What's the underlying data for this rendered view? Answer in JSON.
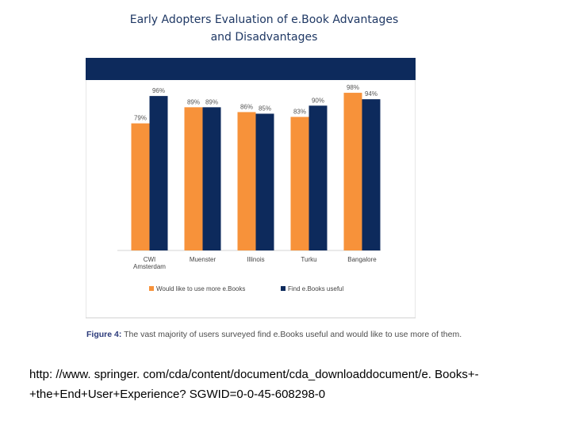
{
  "slide": {
    "title_line1": "Early Adopters Evaluation of e.Book Advantages",
    "title_line2": "and Disadvantages",
    "caption_label": "Figure 4:",
    "caption_text": " The vast majority of users surveyed find e.Books useful and would like to use more of them.",
    "url_line1": "http: //www. springer. com/cda/content/document/cda_downloaddocument/e. Books+-",
    "url_line2": "+the+End+User+Experience? SGWID=0-0-45-608298-0"
  },
  "colors": {
    "title": "#1f3864",
    "navy": "#0d2a5c",
    "orange": "#f7923a"
  },
  "chart_data": {
    "type": "bar",
    "categories": [
      "CWI Amsterdam",
      "Muenster",
      "Illinois",
      "Turku",
      "Bangalore"
    ],
    "category_lines": [
      [
        "CWI",
        "Amsterdam"
      ],
      [
        "Muenster"
      ],
      [
        "Illinois"
      ],
      [
        "Turku"
      ],
      [
        "Bangalore"
      ]
    ],
    "series": [
      {
        "name": "Would like to use more e.Books",
        "color": "#f7923a",
        "values": [
          79,
          89,
          86,
          83,
          98
        ]
      },
      {
        "name": "Find e.Books useful",
        "color": "#0d2a5c",
        "values": [
          96,
          89,
          85,
          90,
          94
        ]
      }
    ],
    "value_labels": [
      [
        "79%",
        "89%",
        "86%",
        "83%",
        "98%"
      ],
      [
        "96%",
        "89%",
        "85%",
        "90%",
        "94%"
      ]
    ],
    "ylim": [
      0,
      100
    ],
    "legend_position": "bottom",
    "grid": false
  }
}
